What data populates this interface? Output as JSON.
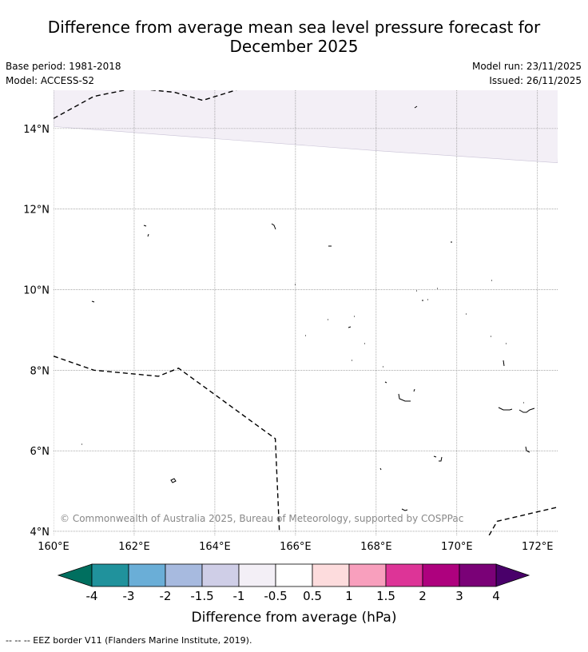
{
  "title": {
    "line1": "Difference from average mean sea level pressure forecast for",
    "line2": "December 2025"
  },
  "info": {
    "base_period": "Base period: 1981-2018",
    "model": "Model: ACCESS-S2",
    "model_run": "Model run: 23/11/2025",
    "issued": "Issued: 26/11/2025"
  },
  "map": {
    "copyright": "© Commonwealth of Australia 2025, Bureau of Meteorology, supported by COSPPac",
    "lon_range": [
      160,
      172.5
    ],
    "lat_range": [
      3.9,
      14.95
    ],
    "lon_ticks": [
      {
        "value": 160,
        "label": "160°E"
      },
      {
        "value": 162,
        "label": "162°E"
      },
      {
        "value": 164,
        "label": "164°E"
      },
      {
        "value": 166,
        "label": "166°E"
      },
      {
        "value": 168,
        "label": "168°E"
      },
      {
        "value": 170,
        "label": "170°E"
      },
      {
        "value": 172,
        "label": "172°E"
      }
    ],
    "lat_ticks": [
      {
        "value": 14,
        "label": "14°N"
      },
      {
        "value": 12,
        "label": "12°N"
      },
      {
        "value": 10,
        "label": "10°N"
      },
      {
        "value": 8,
        "label": "8°N"
      },
      {
        "value": 6,
        "label": "6°N"
      },
      {
        "value": 4,
        "label": "4°N"
      }
    ],
    "anomaly_region": {
      "category": "-1 to -0.5 hPa",
      "color": "#f3eff6",
      "boundary": [
        [
          160,
          14.05
        ],
        [
          164,
          13.75
        ],
        [
          168,
          13.45
        ],
        [
          172.5,
          13.15
        ]
      ]
    },
    "eez_borders": [
      [
        [
          160,
          14.25
        ],
        [
          161,
          14.8
        ],
        [
          162,
          15.0
        ],
        [
          163,
          14.9
        ],
        [
          163.7,
          14.7
        ],
        [
          164.6,
          14.98
        ]
      ],
      [
        [
          160,
          8.35
        ],
        [
          161,
          8.0
        ],
        [
          162.6,
          7.85
        ],
        [
          163.1,
          8.05
        ],
        [
          165.5,
          6.3
        ],
        [
          165.6,
          4.0
        ]
      ],
      [
        [
          170.8,
          3.9
        ],
        [
          171,
          4.25
        ],
        [
          172.5,
          4.6
        ]
      ]
    ]
  },
  "colorbar": {
    "label": "Difference from average (hPa)",
    "ticks": [
      "-4",
      "-3",
      "-2",
      "-1.5",
      "-1",
      "-0.5",
      "0.5",
      "1",
      "1.5",
      "2",
      "3",
      "4"
    ],
    "colors": [
      "#20929c",
      "#6aaed7",
      "#a7badf",
      "#cfcee7",
      "#f3eff6",
      "#ffffff",
      "#fddcdd",
      "#f89fbd",
      "#dd3497",
      "#ae017e",
      "#7a0177"
    ],
    "extend_low_color": "#006f5f",
    "extend_high_color": "#49006a"
  },
  "footnote": "--  --  -- EEZ border V11 (Flanders Marine Institute, 2019)."
}
